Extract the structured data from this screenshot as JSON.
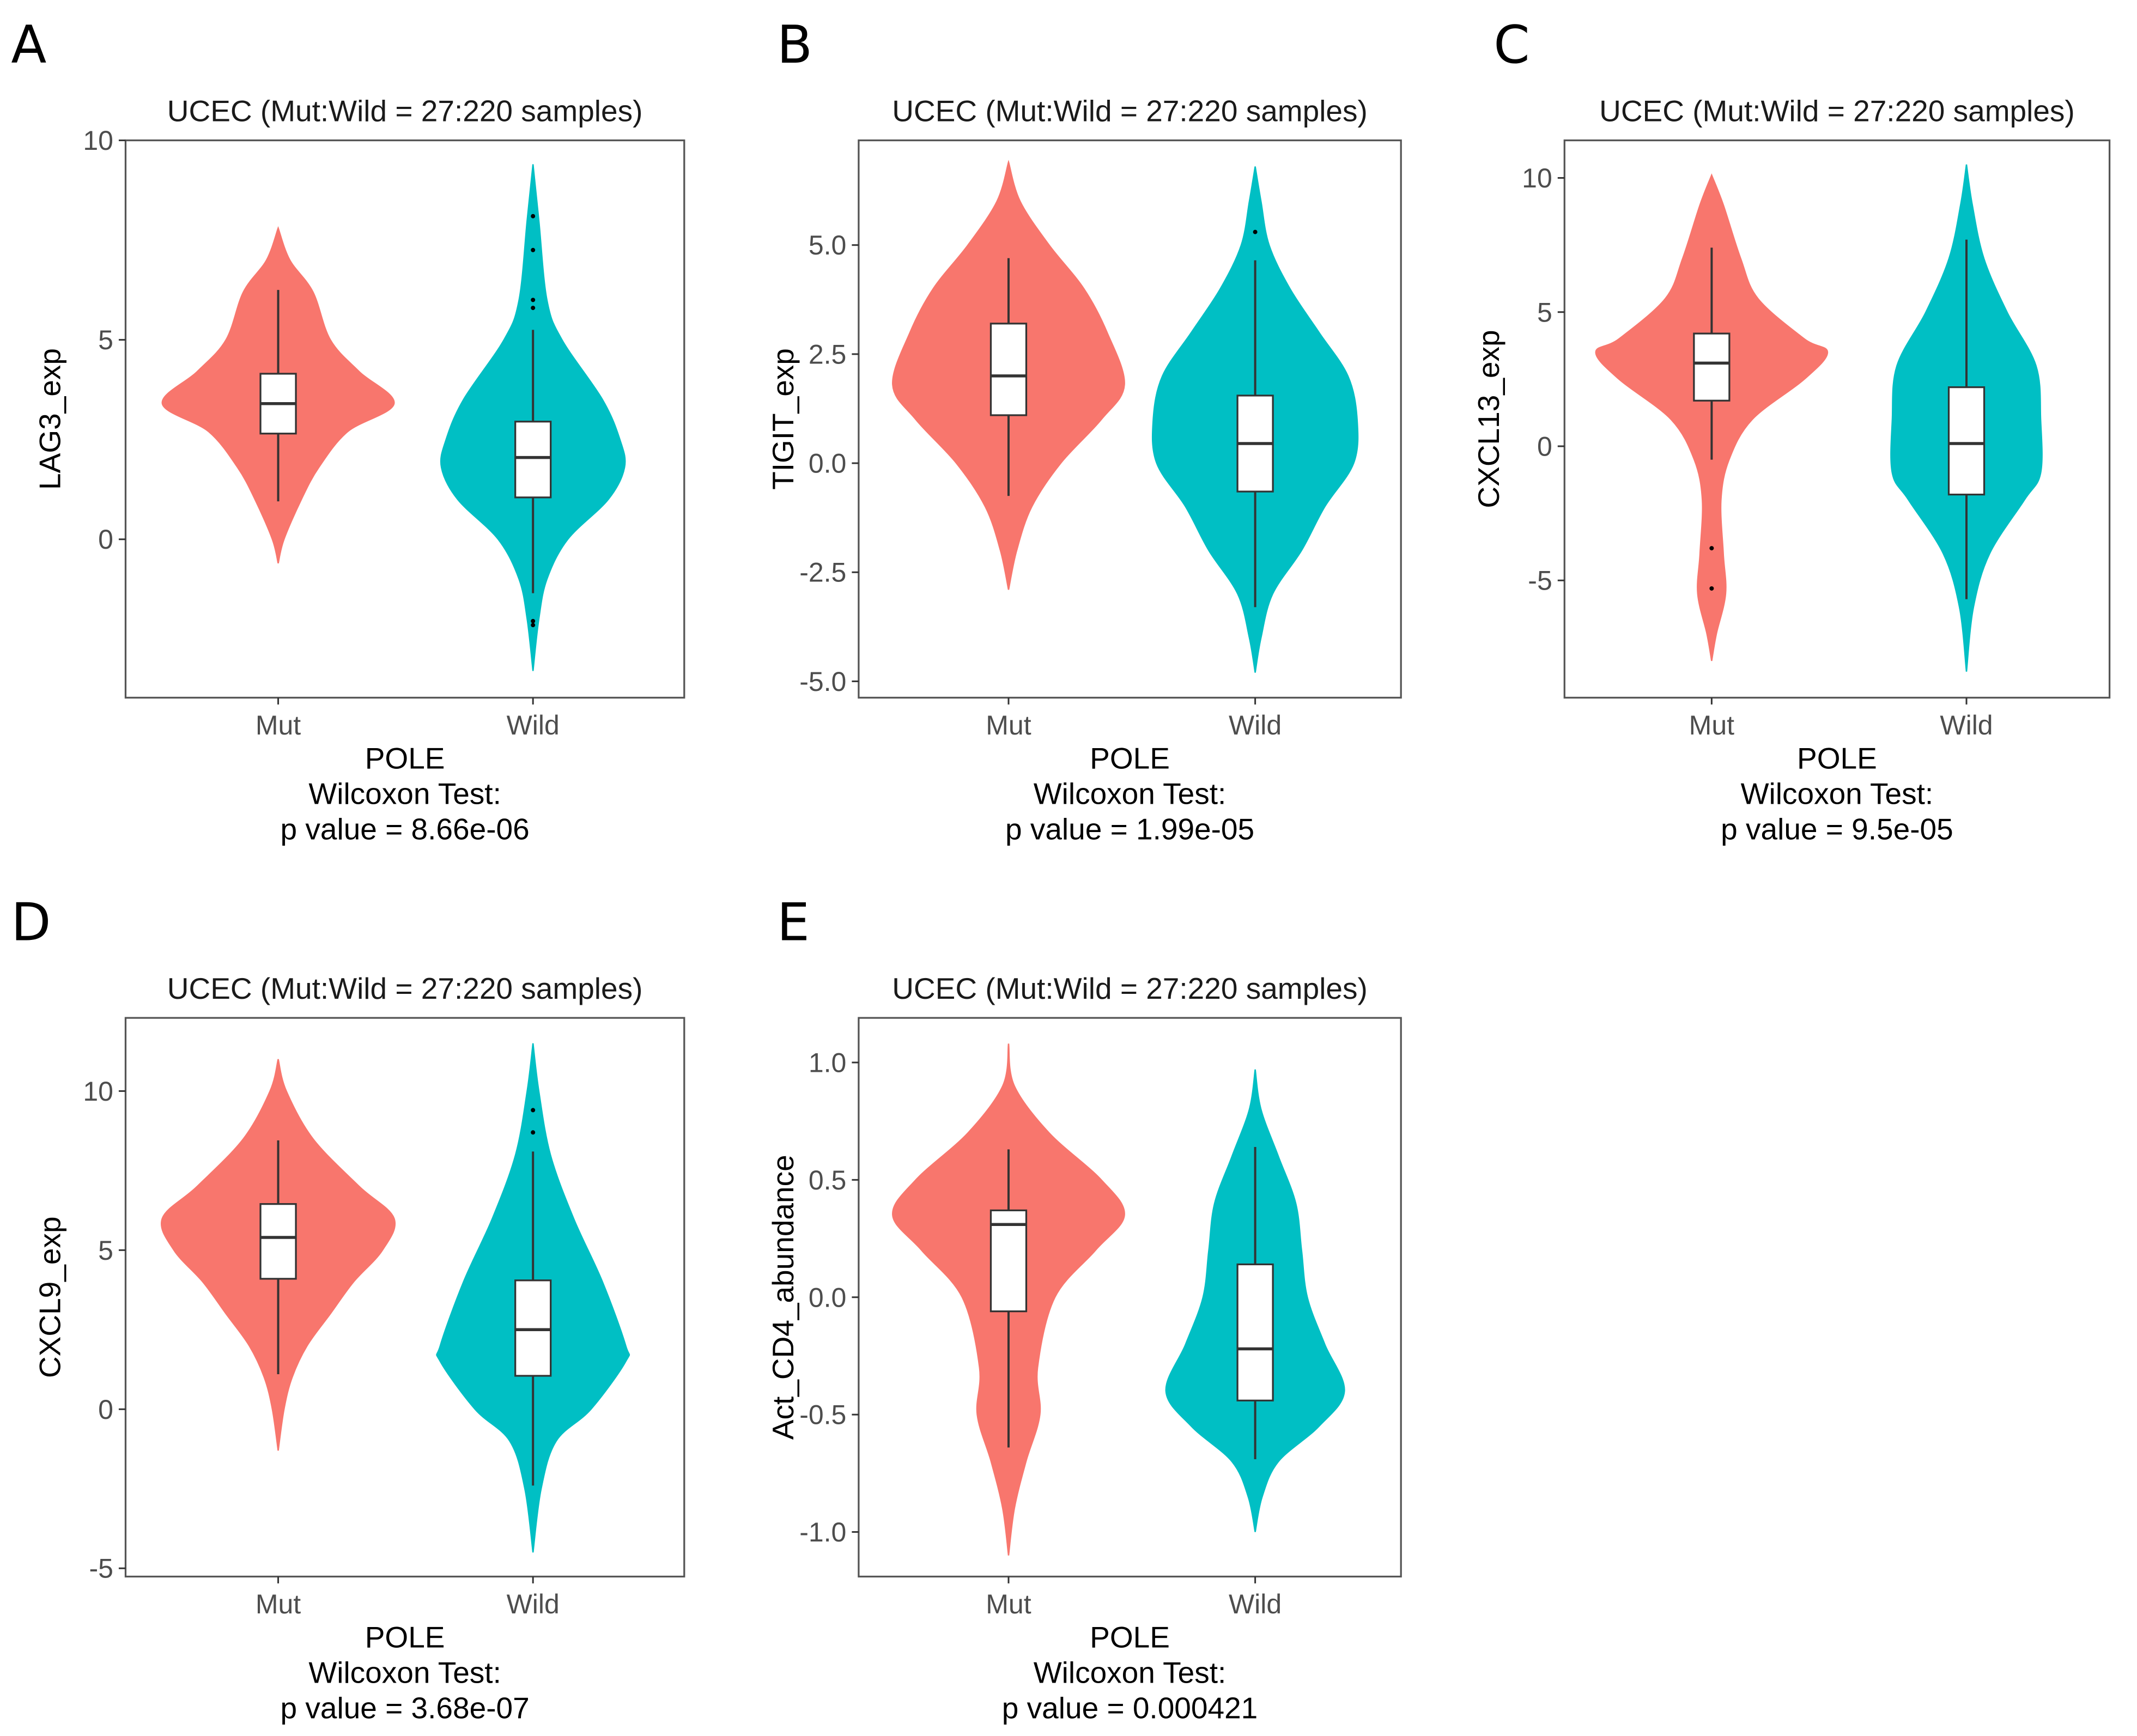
{
  "colors": {
    "Mut": "#F8766D",
    "Wild": "#00BFC4",
    "box": "#ffffff",
    "line": "#333333"
  },
  "chart_data": [
    {
      "type": "violin",
      "panel": "A",
      "title": "UCEC (Mut:Wild = 27:220 samples)",
      "ylabel": "LAG3_exp",
      "xlabel": "POLE",
      "test": "Wilcoxon Test:",
      "pvalue": "p value = 8.66e-06",
      "categories": [
        "Mut",
        "Wild"
      ],
      "ylim": [
        -3.97,
        10
      ],
      "yticks": [
        10,
        5,
        0
      ],
      "ytick_labels": [
        "10",
        "5",
        "0"
      ],
      "groups": [
        {
          "name": "Mut",
          "density": [
            [
              7.8,
              0
            ],
            [
              7.0,
              0.1
            ],
            [
              6.2,
              0.3
            ],
            [
              5,
              0.45
            ],
            [
              4.2,
              0.7
            ],
            [
              3.4,
              1
            ],
            [
              2.7,
              0.6
            ],
            [
              1.8,
              0.35
            ],
            [
              1,
              0.2
            ],
            [
              0,
              0.05
            ],
            [
              -0.6,
              0
            ]
          ],
          "box": {
            "lower": 0.95,
            "q1": 2.65,
            "median": 3.4,
            "q3": 4.15,
            "upper": 6.25
          },
          "outliers": []
        },
        {
          "name": "Wild",
          "density": [
            [
              9.4,
              0
            ],
            [
              8,
              0.05
            ],
            [
              6,
              0.12
            ],
            [
              5,
              0.25
            ],
            [
              3.5,
              0.6
            ],
            [
              2.5,
              0.75
            ],
            [
              1.8,
              0.79
            ],
            [
              1,
              0.65
            ],
            [
              0,
              0.3
            ],
            [
              -1,
              0.12
            ],
            [
              -2,
              0.05
            ],
            [
              -3.3,
              0
            ]
          ],
          "box": {
            "lower": -1.35,
            "q1": 1.05,
            "median": 2.05,
            "q3": 2.95,
            "upper": 5.25
          },
          "outliers": [
            8.1,
            7.25,
            6.0,
            5.8,
            -2.05,
            -2.15
          ]
        }
      ]
    },
    {
      "type": "violin",
      "panel": "B",
      "title": "UCEC (Mut:Wild = 27:220 samples)",
      "ylabel": "TIGIT_exp",
      "xlabel": "POLE",
      "test": "Wilcoxon Test:",
      "pvalue": "p value = 1.99e-05",
      "categories": [
        "Mut",
        "Wild"
      ],
      "ylim": [
        -5.375,
        7.4
      ],
      "yticks": [
        5,
        2.5,
        0,
        -2.5,
        -5
      ],
      "ytick_labels": [
        "5.0",
        "2.5",
        "0.0",
        "-2.5",
        "-5.0"
      ],
      "groups": [
        {
          "name": "Mut",
          "density": [
            [
              6.9,
              0
            ],
            [
              6,
              0.1
            ],
            [
              5,
              0.35
            ],
            [
              4,
              0.65
            ],
            [
              3,
              0.85
            ],
            [
              1.8,
              1
            ],
            [
              1,
              0.8
            ],
            [
              0,
              0.45
            ],
            [
              -1,
              0.2
            ],
            [
              -2,
              0.07
            ],
            [
              -2.9,
              0
            ]
          ],
          "box": {
            "lower": -0.75,
            "q1": 1.1,
            "median": 2.0,
            "q3": 3.2,
            "upper": 4.7
          },
          "outliers": []
        },
        {
          "name": "Wild",
          "density": [
            [
              6.8,
              0
            ],
            [
              6,
              0.05
            ],
            [
              5,
              0.12
            ],
            [
              4,
              0.3
            ],
            [
              3,
              0.55
            ],
            [
              2,
              0.8
            ],
            [
              1,
              0.88
            ],
            [
              0,
              0.85
            ],
            [
              -1,
              0.6
            ],
            [
              -2,
              0.4
            ],
            [
              -3,
              0.15
            ],
            [
              -4,
              0.05
            ],
            [
              -4.8,
              0
            ]
          ],
          "box": {
            "lower": -3.3,
            "q1": -0.65,
            "median": 0.45,
            "q3": 1.55,
            "upper": 4.65
          },
          "outliers": [
            5.3
          ]
        }
      ]
    },
    {
      "type": "violin",
      "panel": "C",
      "title": "UCEC (Mut:Wild = 27:220 samples)",
      "ylabel": "CXCL13_exp",
      "xlabel": "POLE",
      "test": "Wilcoxon Test:",
      "pvalue": "p value = 9.5e-05",
      "categories": [
        "Mut",
        "Wild"
      ],
      "ylim": [
        -9.37,
        11.4
      ],
      "yticks": [
        10,
        5,
        0,
        -5
      ],
      "ytick_labels": [
        "10",
        "5",
        "0",
        "-5"
      ],
      "groups": [
        {
          "name": "Mut",
          "density": [
            [
              10.1,
              0
            ],
            [
              9,
              0.1
            ],
            [
              7,
              0.25
            ],
            [
              5.5,
              0.4
            ],
            [
              4,
              0.8
            ],
            [
              3.5,
              1
            ],
            [
              2.5,
              0.8
            ],
            [
              1,
              0.35
            ],
            [
              -0.5,
              0.15
            ],
            [
              -2,
              0.08
            ],
            [
              -4,
              0.1
            ],
            [
              -5.5,
              0.12
            ],
            [
              -7,
              0.04
            ],
            [
              -8,
              0
            ]
          ],
          "box": {
            "lower": -0.5,
            "q1": 1.7,
            "median": 3.1,
            "q3": 4.2,
            "upper": 7.4
          },
          "outliers": [
            -3.8,
            -5.3
          ]
        },
        {
          "name": "Wild",
          "density": [
            [
              10.5,
              0
            ],
            [
              9,
              0.05
            ],
            [
              7,
              0.15
            ],
            [
              5,
              0.35
            ],
            [
              3,
              0.6
            ],
            [
              1,
              0.64
            ],
            [
              -1,
              0.64
            ],
            [
              -2,
              0.5
            ],
            [
              -4,
              0.2
            ],
            [
              -6,
              0.06
            ],
            [
              -8.4,
              0
            ]
          ],
          "box": {
            "lower": -5.7,
            "q1": -1.8,
            "median": 0.1,
            "q3": 2.2,
            "upper": 7.7
          },
          "outliers": []
        }
      ]
    },
    {
      "type": "violin",
      "panel": "D",
      "title": "UCEC (Mut:Wild = 27:220 samples)",
      "ylabel": "CXCL9_exp",
      "xlabel": "POLE",
      "test": "Wilcoxon Test:",
      "pvalue": "p value = 3.68e-07",
      "categories": [
        "Mut",
        "Wild"
      ],
      "ylim": [
        -5.26,
        12.3
      ],
      "yticks": [
        10,
        5,
        0,
        -5
      ],
      "ytick_labels": [
        "10",
        "5",
        "0",
        "-5"
      ],
      "groups": [
        {
          "name": "Mut",
          "density": [
            [
              11,
              0
            ],
            [
              10,
              0.07
            ],
            [
              8.5,
              0.3
            ],
            [
              7,
              0.7
            ],
            [
              6,
              1
            ],
            [
              5,
              0.9
            ],
            [
              4,
              0.65
            ],
            [
              3,
              0.45
            ],
            [
              2,
              0.25
            ],
            [
              1,
              0.12
            ],
            [
              0,
              0.05
            ],
            [
              -1.3,
              0
            ]
          ],
          "box": {
            "lower": 1.1,
            "q1": 4.1,
            "median": 5.4,
            "q3": 6.45,
            "upper": 8.45
          },
          "outliers": []
        },
        {
          "name": "Wild",
          "density": [
            [
              11.5,
              0
            ],
            [
              10,
              0.05
            ],
            [
              8,
              0.15
            ],
            [
              6,
              0.35
            ],
            [
              4,
              0.6
            ],
            [
              2,
              0.8
            ],
            [
              1.5,
              0.8
            ],
            [
              0,
              0.5
            ],
            [
              -1,
              0.2
            ],
            [
              -2.5,
              0.07
            ],
            [
              -4.5,
              0
            ]
          ],
          "box": {
            "lower": -2.4,
            "q1": 1.05,
            "median": 2.5,
            "q3": 4.05,
            "upper": 8.1
          },
          "outliers": [
            9.4,
            8.7
          ]
        }
      ]
    },
    {
      "type": "violin",
      "panel": "E",
      "title": "UCEC (Mut:Wild = 27:220 samples)",
      "ylabel": "Act_CD4_abundance",
      "xlabel": "POLE",
      "test": "Wilcoxon Test:",
      "pvalue": "p value = 0.000421",
      "categories": [
        "Mut",
        "Wild"
      ],
      "ylim": [
        -1.19,
        1.19
      ],
      "yticks": [
        1,
        0.5,
        0,
        -0.5,
        -1
      ],
      "ytick_labels": [
        "1.0",
        "0.5",
        "0.0",
        "-0.5",
        "-1.0"
      ],
      "groups": [
        {
          "name": "Mut",
          "density": [
            [
              1.08,
              0
            ],
            [
              0.9,
              0.05
            ],
            [
              0.7,
              0.35
            ],
            [
              0.5,
              0.8
            ],
            [
              0.35,
              1
            ],
            [
              0.2,
              0.75
            ],
            [
              0,
              0.4
            ],
            [
              -0.3,
              0.25
            ],
            [
              -0.5,
              0.27
            ],
            [
              -0.7,
              0.15
            ],
            [
              -0.9,
              0.05
            ],
            [
              -1.1,
              0
            ]
          ],
          "box": {
            "lower": -0.64,
            "q1": -0.06,
            "median": 0.31,
            "q3": 0.37,
            "upper": 0.63
          },
          "outliers": []
        },
        {
          "name": "Wild",
          "density": [
            [
              0.97,
              0
            ],
            [
              0.8,
              0.05
            ],
            [
              0.6,
              0.2
            ],
            [
              0.4,
              0.35
            ],
            [
              0.2,
              0.4
            ],
            [
              0,
              0.45
            ],
            [
              -0.2,
              0.6
            ],
            [
              -0.4,
              0.77
            ],
            [
              -0.55,
              0.55
            ],
            [
              -0.7,
              0.2
            ],
            [
              -0.85,
              0.06
            ],
            [
              -1.0,
              0
            ]
          ],
          "box": {
            "lower": -0.69,
            "q1": -0.44,
            "median": -0.22,
            "q3": 0.14,
            "upper": 0.64
          },
          "outliers": []
        }
      ]
    }
  ]
}
